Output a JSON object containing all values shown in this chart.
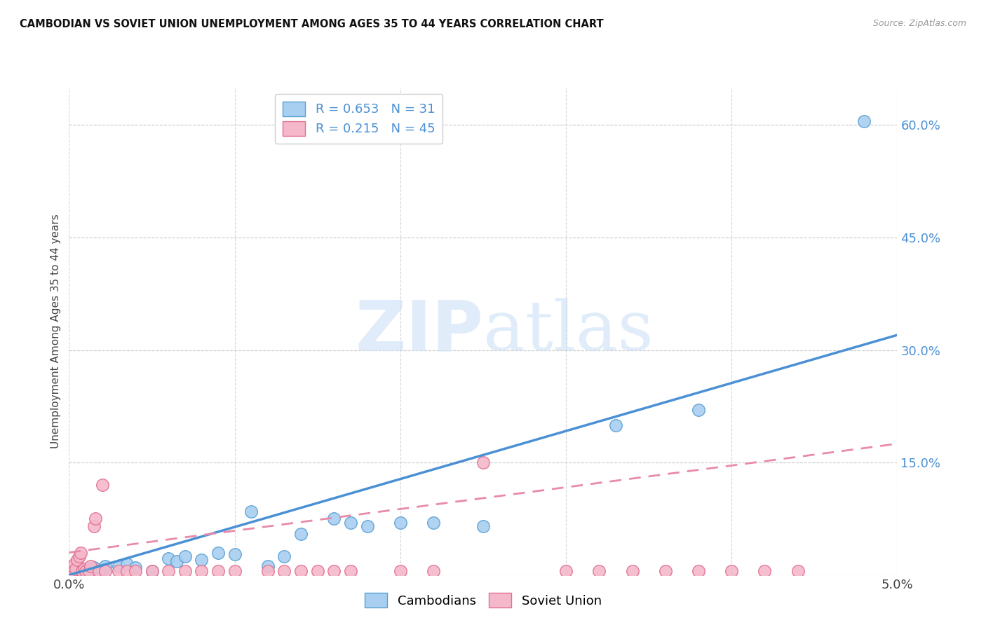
{
  "title": "CAMBODIAN VS SOVIET UNION UNEMPLOYMENT AMONG AGES 35 TO 44 YEARS CORRELATION CHART",
  "source": "Source: ZipAtlas.com",
  "ylabel": "Unemployment Among Ages 35 to 44 years",
  "xlim": [
    0.0,
    0.05
  ],
  "ylim": [
    0.0,
    0.65
  ],
  "xticks": [
    0.0,
    0.01,
    0.02,
    0.03,
    0.04,
    0.05
  ],
  "xticklabels": [
    "0.0%",
    "",
    "",
    "",
    "",
    "5.0%"
  ],
  "ytick_positions": [
    0.15,
    0.3,
    0.45,
    0.6
  ],
  "ytick_labels": [
    "15.0%",
    "30.0%",
    "45.0%",
    "60.0%"
  ],
  "legend_cambodian_R": "0.653",
  "legend_cambodian_N": "31",
  "legend_soviet_R": "0.215",
  "legend_soviet_N": "45",
  "cambodian_color": "#a8cff0",
  "cambodian_edge_color": "#5a9fd4",
  "soviet_color": "#f5b8cb",
  "soviet_edge_color": "#e07090",
  "cambodian_line_color": "#4a90d4",
  "soviet_line_color": "#e88aa8",
  "watermark_color": "#ddeeff",
  "cambodian_points": [
    [
      0.0003,
      0.005
    ],
    [
      0.0005,
      0.005
    ],
    [
      0.0008,
      0.008
    ],
    [
      0.001,
      0.005
    ],
    [
      0.0012,
      0.008
    ],
    [
      0.0015,
      0.01
    ],
    [
      0.002,
      0.007
    ],
    [
      0.0022,
      0.012
    ],
    [
      0.003,
      0.012
    ],
    [
      0.0035,
      0.015
    ],
    [
      0.004,
      0.01
    ],
    [
      0.005,
      0.005
    ],
    [
      0.006,
      0.022
    ],
    [
      0.0065,
      0.018
    ],
    [
      0.007,
      0.025
    ],
    [
      0.008,
      0.02
    ],
    [
      0.009,
      0.03
    ],
    [
      0.01,
      0.028
    ],
    [
      0.011,
      0.085
    ],
    [
      0.012,
      0.012
    ],
    [
      0.013,
      0.025
    ],
    [
      0.014,
      0.055
    ],
    [
      0.016,
      0.075
    ],
    [
      0.017,
      0.07
    ],
    [
      0.018,
      0.065
    ],
    [
      0.02,
      0.07
    ],
    [
      0.022,
      0.07
    ],
    [
      0.025,
      0.065
    ],
    [
      0.033,
      0.2
    ],
    [
      0.038,
      0.22
    ],
    [
      0.048,
      0.605
    ]
  ],
  "soviet_points": [
    [
      0.0,
      0.005
    ],
    [
      0.0,
      0.01
    ],
    [
      0.0002,
      0.005
    ],
    [
      0.0002,
      0.012
    ],
    [
      0.0003,
      0.015
    ],
    [
      0.0004,
      0.008
    ],
    [
      0.0005,
      0.02
    ],
    [
      0.0006,
      0.025
    ],
    [
      0.0007,
      0.03
    ],
    [
      0.0008,
      0.005
    ],
    [
      0.0009,
      0.008
    ],
    [
      0.001,
      0.005
    ],
    [
      0.0012,
      0.005
    ],
    [
      0.0013,
      0.012
    ],
    [
      0.0015,
      0.065
    ],
    [
      0.0016,
      0.075
    ],
    [
      0.0018,
      0.005
    ],
    [
      0.002,
      0.12
    ],
    [
      0.0022,
      0.005
    ],
    [
      0.003,
      0.005
    ],
    [
      0.0035,
      0.005
    ],
    [
      0.004,
      0.005
    ],
    [
      0.005,
      0.005
    ],
    [
      0.006,
      0.005
    ],
    [
      0.007,
      0.005
    ],
    [
      0.008,
      0.005
    ],
    [
      0.009,
      0.005
    ],
    [
      0.01,
      0.005
    ],
    [
      0.012,
      0.005
    ],
    [
      0.013,
      0.005
    ],
    [
      0.014,
      0.005
    ],
    [
      0.015,
      0.005
    ],
    [
      0.016,
      0.005
    ],
    [
      0.017,
      0.005
    ],
    [
      0.02,
      0.005
    ],
    [
      0.022,
      0.005
    ],
    [
      0.025,
      0.15
    ],
    [
      0.03,
      0.005
    ],
    [
      0.032,
      0.005
    ],
    [
      0.034,
      0.005
    ],
    [
      0.036,
      0.005
    ],
    [
      0.038,
      0.005
    ],
    [
      0.04,
      0.005
    ],
    [
      0.042,
      0.005
    ],
    [
      0.044,
      0.005
    ]
  ],
  "cambodian_trend_x": [
    0.0,
    0.05
  ],
  "cambodian_trend_y": [
    0.0,
    0.32
  ],
  "soviet_trend_x": [
    0.0,
    0.05
  ],
  "soviet_trend_y": [
    0.03,
    0.175
  ]
}
